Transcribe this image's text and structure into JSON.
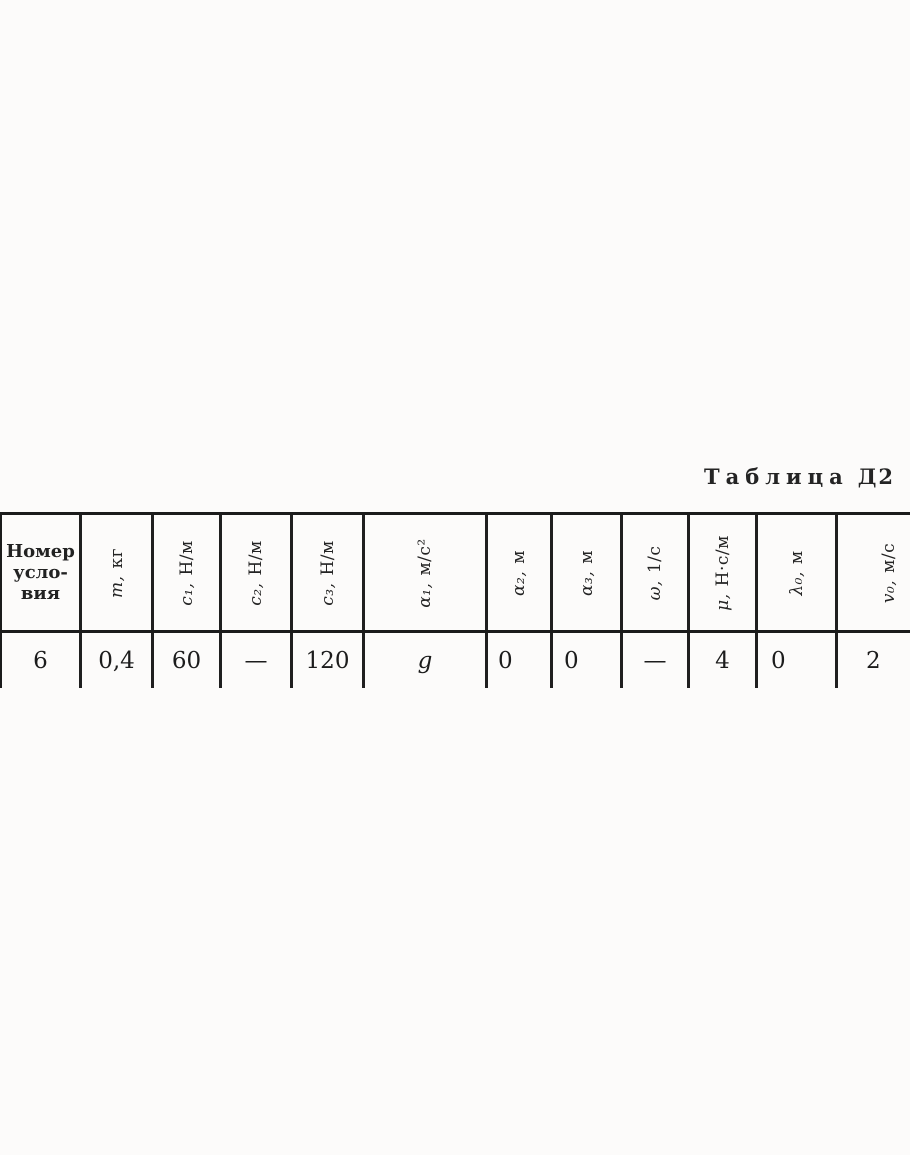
{
  "title": {
    "word": "Таблица",
    "code": "Д2"
  },
  "table": {
    "corner_header": "Номер\nусло-\nвия",
    "columns": [
      {
        "symbol": "m,",
        "unit": "кг"
      },
      {
        "symbol": "c₁,",
        "unit": "Н/м"
      },
      {
        "symbol": "c₂,",
        "unit": "Н/м"
      },
      {
        "symbol": "c₃,",
        "unit": "Н/м"
      },
      {
        "symbol": "α₁,",
        "unit": "м/с²"
      },
      {
        "symbol": "α₂,",
        "unit": "м"
      },
      {
        "symbol": "α₃,",
        "unit": "м"
      },
      {
        "symbol": "ω,",
        "unit": "1/с"
      },
      {
        "symbol": "μ,",
        "unit": "Н·с/м"
      },
      {
        "symbol": "λ₀,",
        "unit": "м"
      },
      {
        "symbol": "v₀,",
        "unit": "м/с"
      }
    ],
    "row": {
      "number": "6",
      "values": [
        "0,4",
        "60",
        "—",
        "120",
        "g",
        "0",
        "0",
        "—",
        "4",
        "0",
        "2"
      ]
    }
  }
}
